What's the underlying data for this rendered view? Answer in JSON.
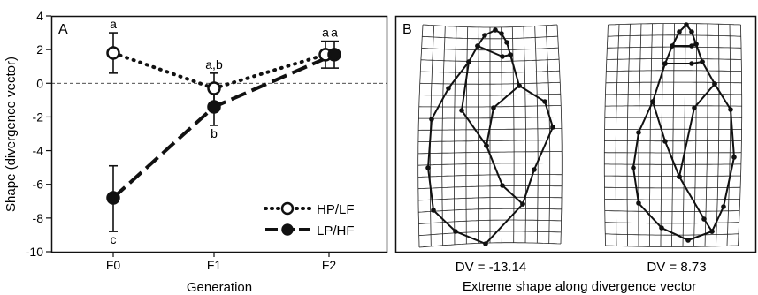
{
  "panel_a": {
    "label": "A",
    "chart_data": {
      "type": "line",
      "xlabel": "Generation",
      "ylabel": "Shape (divergence vector)",
      "categories": [
        "F0",
        "F1",
        "F2"
      ],
      "ylim": [
        -10,
        4
      ],
      "yticks": [
        4,
        2,
        0,
        -2,
        -4,
        -6,
        -8,
        -10
      ],
      "reference_line": 0,
      "grid": false,
      "legend_position": "bottom-right",
      "series": [
        {
          "name": "HP/LF",
          "marker": "open-circle",
          "line": "dotted",
          "values": [
            1.8,
            -0.3,
            1.7
          ],
          "err_low": [
            0.6,
            -1.2,
            0.9
          ],
          "err_high": [
            3.0,
            0.6,
            2.5
          ],
          "letters": [
            "a",
            "a,b",
            "a"
          ]
        },
        {
          "name": "LP/HF",
          "marker": "filled-circle",
          "line": "dashed",
          "values": [
            -6.8,
            -1.4,
            1.7
          ],
          "err_low": [
            -8.8,
            -2.5,
            0.9
          ],
          "err_high": [
            -4.9,
            -0.4,
            2.5
          ],
          "letters": [
            "c",
            "b",
            "a"
          ]
        }
      ]
    }
  },
  "panel_b": {
    "label": "B",
    "caption": "Extreme shape along divergence vector",
    "shapes": [
      {
        "dv_label": "DV = -13.14"
      },
      {
        "dv_label": "DV = 8.73"
      }
    ]
  }
}
